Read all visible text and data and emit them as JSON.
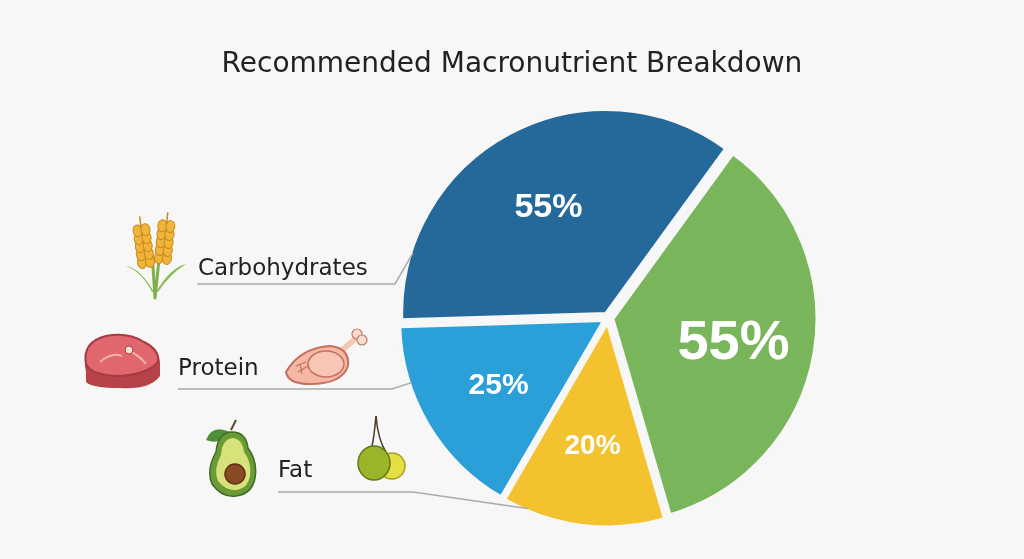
{
  "chart_data": {
    "type": "pie",
    "title": "Recommended Macronutrient Breakdown",
    "categories": [
      "Carbohydrates",
      "Protein",
      "Fat",
      null
    ],
    "values": [
      55,
      25,
      20,
      55
    ],
    "value_labels": [
      "55%",
      "25%",
      "20%",
      "55%"
    ],
    "colors": [
      "#25699a",
      "#2b9fd8",
      "#f4c22f",
      "#79b55a"
    ]
  }
}
